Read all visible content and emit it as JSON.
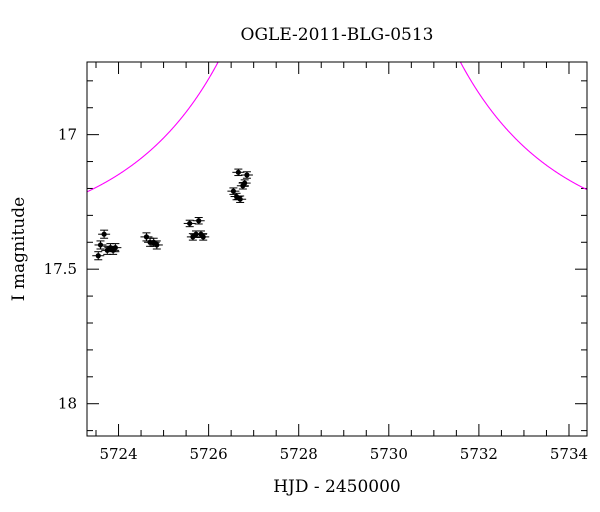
{
  "chart_data": {
    "type": "scatter",
    "title": "OGLE-2011-BLG-0513",
    "xlabel": "HJD - 2450000",
    "ylabel": "I magnitude",
    "xlim": [
      5723.3,
      5734.4
    ],
    "ylim": [
      18.12,
      16.73
    ],
    "y_inverted": true,
    "x_ticks": [
      5724,
      5726,
      5728,
      5730,
      5732,
      5734
    ],
    "x_tick_labels": [
      "5724",
      "5726",
      "5728",
      "5730",
      "5732",
      "5734"
    ],
    "y_ticks": [
      17,
      17.5,
      18
    ],
    "y_tick_labels": [
      "17",
      "17.5",
      "18"
    ],
    "model_color": "#ff00ff",
    "model": {
      "t0": 5728.9,
      "tE": 4.5,
      "u0": 0.03,
      "I_base": 17.42
    },
    "points": [
      {
        "x": 5723.55,
        "y": 17.45,
        "err": 0.015
      },
      {
        "x": 5723.6,
        "y": 17.41,
        "err": 0.015
      },
      {
        "x": 5723.68,
        "y": 17.37,
        "err": 0.015
      },
      {
        "x": 5723.75,
        "y": 17.43,
        "err": 0.015
      },
      {
        "x": 5723.82,
        "y": 17.42,
        "err": 0.015
      },
      {
        "x": 5723.88,
        "y": 17.43,
        "err": 0.015
      },
      {
        "x": 5723.93,
        "y": 17.42,
        "err": 0.015
      },
      {
        "x": 5724.62,
        "y": 17.38,
        "err": 0.015
      },
      {
        "x": 5724.7,
        "y": 17.4,
        "err": 0.015
      },
      {
        "x": 5724.78,
        "y": 17.4,
        "err": 0.015
      },
      {
        "x": 5724.85,
        "y": 17.41,
        "err": 0.015
      },
      {
        "x": 5725.58,
        "y": 17.33,
        "err": 0.012
      },
      {
        "x": 5725.65,
        "y": 17.38,
        "err": 0.012
      },
      {
        "x": 5725.72,
        "y": 17.37,
        "err": 0.012
      },
      {
        "x": 5725.78,
        "y": 17.32,
        "err": 0.012
      },
      {
        "x": 5725.83,
        "y": 17.37,
        "err": 0.012
      },
      {
        "x": 5725.88,
        "y": 17.38,
        "err": 0.012
      },
      {
        "x": 5726.55,
        "y": 17.21,
        "err": 0.012
      },
      {
        "x": 5726.62,
        "y": 17.23,
        "err": 0.012
      },
      {
        "x": 5726.66,
        "y": 17.14,
        "err": 0.012
      },
      {
        "x": 5726.7,
        "y": 17.24,
        "err": 0.012
      },
      {
        "x": 5726.76,
        "y": 17.19,
        "err": 0.012
      },
      {
        "x": 5726.8,
        "y": 17.18,
        "err": 0.012
      },
      {
        "x": 5726.85,
        "y": 17.15,
        "err": 0.012
      }
    ]
  }
}
